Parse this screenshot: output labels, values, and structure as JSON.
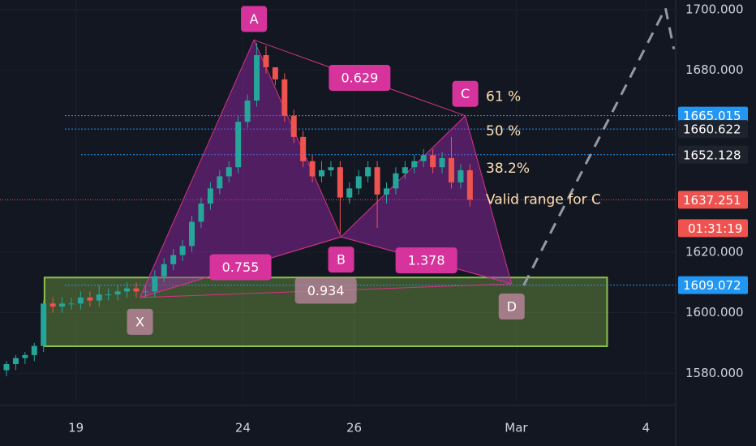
{
  "chart_data": {
    "type": "candlestick",
    "x": [
      0,
      1,
      2,
      3,
      4,
      5,
      6,
      7,
      8,
      9,
      10,
      11,
      12,
      13,
      14,
      15,
      16,
      17,
      18,
      19,
      20,
      21,
      22,
      23,
      24,
      25,
      26,
      27,
      28,
      29,
      30,
      31,
      32,
      33,
      34,
      35,
      36,
      37,
      38,
      39,
      40,
      41,
      42,
      43,
      44,
      45,
      46,
      47,
      48,
      49,
      50
    ],
    "open": [
      1581,
      1583,
      1585,
      1586,
      1589,
      1603,
      1602,
      1603,
      1603,
      1605,
      1604,
      1606,
      1606,
      1607,
      1608,
      1607,
      1607,
      1612,
      1616,
      1619,
      1622,
      1630,
      1636,
      1641,
      1645,
      1648,
      1663,
      1670,
      1685,
      1681,
      1677,
      1665,
      1658,
      1650,
      1645,
      1647,
      1648,
      1638,
      1641,
      1645,
      1648,
      1639,
      1641,
      1646,
      1648,
      1650,
      1652,
      1648,
      1651,
      1643,
      1647
    ],
    "high": [
      1584,
      1586,
      1587,
      1590,
      1604,
      1605,
      1605,
      1605,
      1607,
      1607,
      1609,
      1608,
      1609,
      1610,
      1610,
      1609,
      1614,
      1618,
      1621,
      1624,
      1632,
      1638,
      1643,
      1647,
      1650,
      1665,
      1672,
      1689,
      1688,
      1680,
      1679,
      1667,
      1660,
      1652,
      1650,
      1650,
      1650,
      1643,
      1647,
      1650,
      1650,
      1643,
      1648,
      1650,
      1652,
      1654,
      1654,
      1653,
      1658,
      1649,
      1649
    ],
    "low": [
      1579,
      1581,
      1583,
      1584,
      1587,
      1600,
      1600,
      1601,
      1601,
      1602,
      1602,
      1604,
      1604,
      1605,
      1605,
      1605,
      1605,
      1610,
      1614,
      1617,
      1620,
      1628,
      1634,
      1639,
      1643,
      1646,
      1661,
      1668,
      1679,
      1675,
      1663,
      1656,
      1648,
      1643,
      1643,
      1645,
      1626,
      1636,
      1639,
      1643,
      1628,
      1636,
      1639,
      1644,
      1646,
      1648,
      1646,
      1646,
      1641,
      1641,
      1635
    ],
    "close": [
      1583,
      1585,
      1586,
      1589,
      1603,
      1602,
      1603,
      1603,
      1605,
      1604,
      1606,
      1606,
      1607,
      1608,
      1607,
      1607,
      1612,
      1616,
      1619,
      1622,
      1630,
      1636,
      1641,
      1645,
      1648,
      1663,
      1670,
      1685,
      1681,
      1677,
      1665,
      1658,
      1650,
      1645,
      1647,
      1648,
      1638,
      1641,
      1645,
      1648,
      1639,
      1641,
      1646,
      1648,
      1650,
      1652,
      1648,
      1651,
      1643,
      1647,
      1637.251
    ],
    "up_color": "#26a69a",
    "down_color": "#ef5350",
    "xlim": [
      -0.7,
      72.2
    ],
    "xticks": [
      {
        "value": 7.5,
        "label": "19"
      },
      {
        "value": 25.5,
        "label": "24"
      },
      {
        "value": 37.5,
        "label": "26"
      },
      {
        "value": 55,
        "label": "Mar"
      },
      {
        "value": 69,
        "label": "4"
      }
    ],
    "ylim": [
      1570.7,
      1703.2
    ],
    "yticks": [
      {
        "value": 1700,
        "label": "1700.000"
      },
      {
        "value": 1680,
        "label": "1680.000"
      },
      {
        "value": 1620,
        "label": "1620.000"
      },
      {
        "value": 1600,
        "label": "1600.000"
      },
      {
        "value": 1580,
        "label": "1580.000"
      }
    ],
    "grid": true,
    "pattern": {
      "labels": [
        "X",
        "A",
        "B",
        "C",
        "D"
      ],
      "x": [
        14.4,
        26.7,
        36.1,
        49.5,
        54.5
      ],
      "y": [
        1605,
        1690,
        1625,
        1665,
        1609.5
      ],
      "color": "#9c27b0"
    },
    "ratios": [
      "0.629",
      "0.755",
      "0.934",
      "1.378"
    ],
    "zone": {
      "x": [
        4.1,
        64.8
      ],
      "y": [
        1588.9,
        1611.6
      ],
      "color": "#8bc34a"
    },
    "projection": {
      "x": [
        55.8,
        71.1,
        72
      ],
      "y": [
        1609,
        1700.5,
        1687
      ]
    },
    "levels": [
      {
        "value": 1665.015,
        "note": "61 %",
        "color": "#2196f3"
      },
      {
        "value": 1660.622,
        "note": "50 %",
        "color": "#2196f3"
      },
      {
        "value": 1652.128,
        "note": "38.2%",
        "color": "#2196f3"
      },
      {
        "value": 1609.072,
        "note": "Valid range for C",
        "color": "#2196f3"
      }
    ],
    "last_price": 1637.251,
    "countdown": "01:31:19"
  }
}
